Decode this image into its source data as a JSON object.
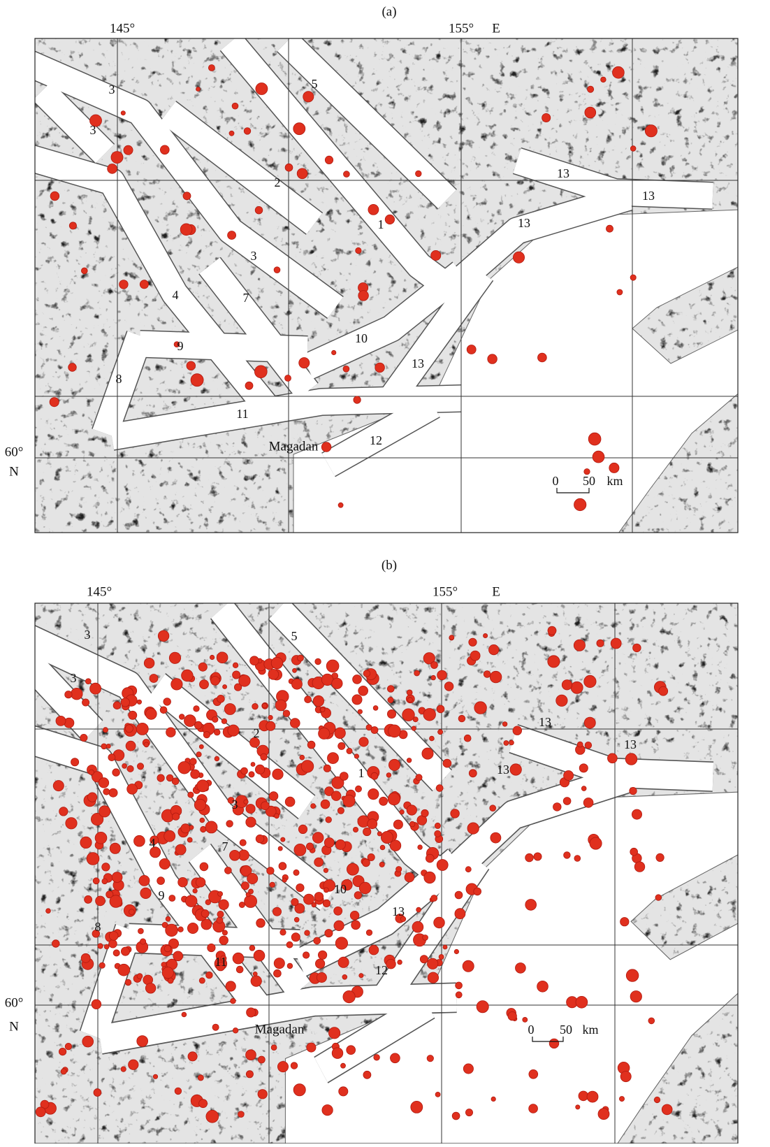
{
  "figure": {
    "panels": [
      {
        "label": "(a)",
        "longitude_labels": [
          "145°",
          "155°",
          "E"
        ],
        "latitude_labels": [
          "60°",
          "N"
        ],
        "zones": [
          "3",
          "3",
          "5",
          "2",
          "1",
          "3",
          "4",
          "7",
          "9",
          "10",
          "13",
          "13",
          "13",
          "13",
          "8",
          "11",
          "12"
        ],
        "city": "Magadan",
        "scale": [
          "0",
          "50",
          "km"
        ]
      },
      {
        "label": "(b)",
        "longitude_labels": [
          "145°",
          "155°",
          "E"
        ],
        "latitude_labels": [
          "60°",
          "N"
        ],
        "zones": [
          "3",
          "3",
          "5",
          "2",
          "1",
          "3",
          "4",
          "7",
          "9",
          "10",
          "13",
          "13",
          "13",
          "13",
          "8",
          "11",
          "12"
        ],
        "city": "Magadan",
        "scale": [
          "0",
          "50",
          "km"
        ]
      }
    ]
  }
}
